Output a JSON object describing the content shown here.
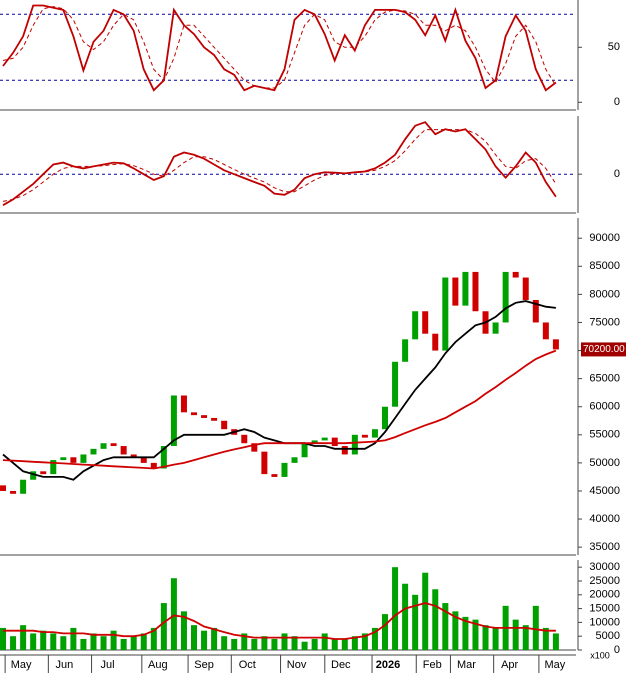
{
  "chart_data": [
    {
      "type": "line",
      "xlim": [
        -0.3,
        57
      ],
      "ylim": [
        -7,
        93
      ],
      "yticks": [
        0,
        50
      ],
      "hlines": [
        80,
        20
      ],
      "series": [
        {
          "color": "#c00000",
          "style": "solid",
          "values": [
            33,
            45,
            60,
            88,
            88,
            86,
            84,
            60,
            29,
            55,
            65,
            84,
            80,
            65,
            30,
            11,
            20,
            84,
            70,
            62,
            50,
            43,
            30,
            25,
            11,
            15,
            13,
            11,
            30,
            75,
            84,
            80,
            62,
            38,
            61,
            47,
            70,
            84,
            84,
            84,
            82,
            75,
            61,
            79,
            56,
            84,
            56,
            40,
            13,
            20,
            60,
            79,
            65,
            30,
            11,
            18
          ]
        },
        {
          "color": "#c00000",
          "style": "dashed",
          "values": [
            38,
            40,
            50,
            70,
            85,
            87,
            85,
            75,
            55,
            48,
            55,
            70,
            80,
            75,
            55,
            30,
            20,
            40,
            70,
            70,
            60,
            50,
            40,
            30,
            20,
            15,
            13,
            13,
            20,
            45,
            70,
            80,
            75,
            55,
            50,
            50,
            60,
            75,
            82,
            84,
            83,
            80,
            70,
            70,
            65,
            70,
            65,
            50,
            30,
            18,
            35,
            60,
            70,
            55,
            30,
            15
          ]
        }
      ]
    },
    {
      "type": "line",
      "xlim": [
        -0.3,
        57
      ],
      "ylim": [
        -1,
        1.5
      ],
      "yticks": [
        0
      ],
      "hlines": [
        0
      ],
      "series": [
        {
          "color": "#c00000",
          "style": "solid",
          "values": [
            -0.8,
            -0.65,
            -0.45,
            -0.25,
            0,
            0.25,
            0.3,
            0.2,
            0.15,
            0.2,
            0.25,
            0.3,
            0.28,
            0.15,
            0,
            -0.15,
            -0.05,
            0.45,
            0.56,
            0.5,
            0.4,
            0.25,
            0.1,
            0,
            -0.1,
            -0.2,
            -0.3,
            -0.5,
            -0.53,
            -0.4,
            -0.1,
            0,
            0.05,
            0.04,
            0.02,
            0.05,
            0.07,
            0.15,
            0.3,
            0.5,
            0.9,
            1.25,
            1.34,
            1.03,
            1.16,
            1.1,
            1.16,
            0.9,
            0.64,
            0.2,
            -0.09,
            0.2,
            0.56,
            0.3,
            -0.2,
            -0.58
          ]
        },
        {
          "color": "#c00000",
          "style": "dashed",
          "values": [
            -0.7,
            -0.65,
            -0.55,
            -0.4,
            -0.2,
            0,
            0.15,
            0.2,
            0.2,
            0.2,
            0.22,
            0.25,
            0.27,
            0.22,
            0.12,
            0,
            -0.05,
            0.1,
            0.3,
            0.45,
            0.45,
            0.38,
            0.25,
            0.12,
            0,
            -0.1,
            -0.2,
            -0.35,
            -0.45,
            -0.45,
            -0.3,
            -0.15,
            -0.03,
            0.02,
            0.03,
            0.04,
            0.06,
            0.1,
            0.2,
            0.35,
            0.6,
            0.9,
            1.15,
            1.15,
            1.15,
            1.15,
            1.15,
            1.05,
            0.85,
            0.5,
            0.2,
            0.15,
            0.35,
            0.4,
            0.15,
            -0.25
          ]
        }
      ]
    },
    {
      "type": "candlestick",
      "xlim": [
        -0.3,
        57
      ],
      "ylim": [
        33600,
        93600
      ],
      "yticks": [
        35000,
        40000,
        45000,
        50000,
        55000,
        60000,
        65000,
        70000,
        75000,
        80000,
        85000,
        90000
      ],
      "up_color": "#00a000",
      "down_color": "#d00000",
      "open": [
        46000,
        45000,
        44500,
        47000,
        48500,
        48000,
        50500,
        51000,
        50000,
        51500,
        52500,
        53500,
        53000,
        51500,
        51000,
        50000,
        49000,
        53000,
        62000,
        59000,
        58500,
        58000,
        57500,
        56000,
        55000,
        53500,
        52000,
        48000,
        47500,
        50000,
        51000,
        53500,
        54000,
        54500,
        53000,
        51500,
        55000,
        54500,
        56000,
        60000,
        68000,
        72000,
        77000,
        73000,
        70000,
        83000,
        78000,
        84000,
        77000,
        73000,
        75000,
        84000,
        83000,
        79000,
        75000,
        72000
      ],
      "close": [
        45000,
        44500,
        47000,
        48500,
        48000,
        50500,
        51000,
        50000,
        51500,
        52500,
        53500,
        53000,
        51500,
        51000,
        50000,
        49000,
        53000,
        62000,
        59000,
        58500,
        58000,
        57500,
        56000,
        55000,
        53500,
        52000,
        48000,
        47500,
        50000,
        51000,
        53500,
        54000,
        54500,
        53000,
        51500,
        55000,
        54500,
        56000,
        60000,
        68000,
        72000,
        77000,
        73000,
        70000,
        83000,
        78000,
        84000,
        77000,
        73000,
        75000,
        84000,
        83000,
        79000,
        75000,
        72000,
        70200
      ],
      "overlays": [
        {
          "color": "#000000",
          "values": [
            51500,
            50000,
            48500,
            48000,
            47500,
            47500,
            47500,
            47000,
            48500,
            49500,
            50500,
            51000,
            51000,
            51000,
            51000,
            51000,
            52500,
            54000,
            55000,
            55000,
            55000,
            55000,
            55000,
            55500,
            56000,
            55500,
            54500,
            54000,
            53500,
            53500,
            53500,
            53000,
            53000,
            52500,
            52500,
            52500,
            52500,
            53500,
            55500,
            58000,
            60500,
            63000,
            65000,
            67000,
            69500,
            71500,
            73000,
            74500,
            75000,
            76000,
            77500,
            78500,
            78800,
            78300,
            77800,
            77600
          ]
        },
        {
          "color": "#d00000",
          "values": [
            50500,
            50400,
            50300,
            50200,
            50100,
            50000,
            49900,
            49800,
            49700,
            49600,
            49500,
            49400,
            49300,
            49200,
            49100,
            49000,
            49300,
            49700,
            50000,
            50500,
            51000,
            51500,
            52000,
            52400,
            52800,
            53200,
            53500,
            53500,
            53500,
            53500,
            53500,
            53500,
            53500,
            53500,
            53500,
            53600,
            53700,
            53800,
            54000,
            54600,
            55300,
            56000,
            56700,
            57300,
            58000,
            59000,
            60000,
            61000,
            62300,
            63500,
            64800,
            66000,
            67300,
            68500,
            69300,
            70000
          ]
        }
      ],
      "last_price": {
        "value": 70200,
        "label": "70200.00"
      }
    },
    {
      "type": "bar",
      "xlim": [
        -0.3,
        57
      ],
      "ylim": [
        0,
        32600
      ],
      "yticks": [
        0,
        5000,
        10000,
        15000,
        20000,
        25000,
        30000
      ],
      "unit_label": "x100",
      "color": "#00a000",
      "values": [
        8000,
        5000,
        9000,
        6000,
        7000,
        6000,
        5000,
        8000,
        4000,
        6000,
        5000,
        7000,
        4000,
        5000,
        6000,
        8000,
        17000,
        26000,
        14000,
        9000,
        7000,
        8000,
        5000,
        4000,
        6000,
        4000,
        5000,
        4000,
        6000,
        5000,
        3000,
        4000,
        6000,
        4000,
        4000,
        5000,
        6000,
        8000,
        13000,
        30000,
        24000,
        20000,
        28000,
        22000,
        17000,
        14000,
        12000,
        11000,
        9000,
        8000,
        16000,
        11000,
        9000,
        16000,
        8000,
        6000
      ],
      "overlay": {
        "color": "#d00000",
        "values": [
          7000,
          7000,
          7000,
          7000,
          6500,
          6500,
          6000,
          6000,
          6000,
          5500,
          5500,
          5500,
          5000,
          5000,
          5500,
          7000,
          10000,
          12500,
          12000,
          10500,
          8500,
          7500,
          6500,
          5500,
          5000,
          4500,
          4500,
          4500,
          4500,
          4500,
          4500,
          4500,
          4500,
          4000,
          4000,
          4500,
          5000,
          6500,
          9000,
          12500,
          15000,
          16000,
          17000,
          16000,
          14000,
          12000,
          10500,
          9500,
          8500,
          8000,
          8000,
          8000,
          8000,
          7500,
          7000,
          7000
        ]
      },
      "xticks": [
        {
          "value": 2,
          "label": "May"
        },
        {
          "value": 6.3,
          "label": "Jun"
        },
        {
          "value": 10.6,
          "label": "Jul"
        },
        {
          "value": 15.6,
          "label": "Aug"
        },
        {
          "value": 20.2,
          "label": "Sep"
        },
        {
          "value": 24.5,
          "label": "Oct"
        },
        {
          "value": 29.4,
          "label": "Nov"
        },
        {
          "value": 33.8,
          "label": "Dec"
        },
        {
          "value": 38.5,
          "label": "2026"
        },
        {
          "value": 42.9,
          "label": "Feb"
        },
        {
          "value": 46.3,
          "label": "Mar"
        },
        {
          "value": 50.6,
          "label": "Apr"
        },
        {
          "value": 55.1,
          "label": "May"
        }
      ]
    }
  ]
}
